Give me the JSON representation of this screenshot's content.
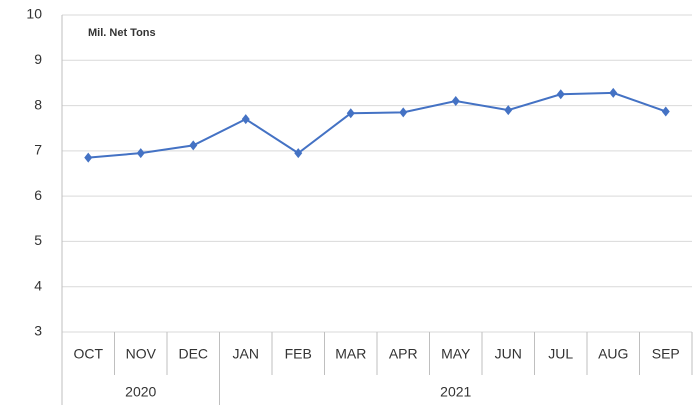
{
  "chart_data": {
    "type": "line",
    "annotation": "Mil. Net Tons",
    "categories": [
      "OCT",
      "NOV",
      "DEC",
      "JAN",
      "FEB",
      "MAR",
      "APR",
      "MAY",
      "JUN",
      "JUL",
      "AUG",
      "SEP"
    ],
    "groups": [
      {
        "label": "2020",
        "count": 3
      },
      {
        "label": "2021",
        "count": 9
      }
    ],
    "series": [
      {
        "name": "Mil. Net Tons",
        "color": "#4472c4",
        "values": [
          6.85,
          6.95,
          7.12,
          7.7,
          6.95,
          7.83,
          7.85,
          8.1,
          7.9,
          8.25,
          8.28,
          7.87
        ]
      }
    ],
    "ylim": [
      3,
      10
    ],
    "yticks": [
      3,
      4,
      5,
      6,
      7,
      8,
      9,
      10
    ],
    "grid": true
  }
}
